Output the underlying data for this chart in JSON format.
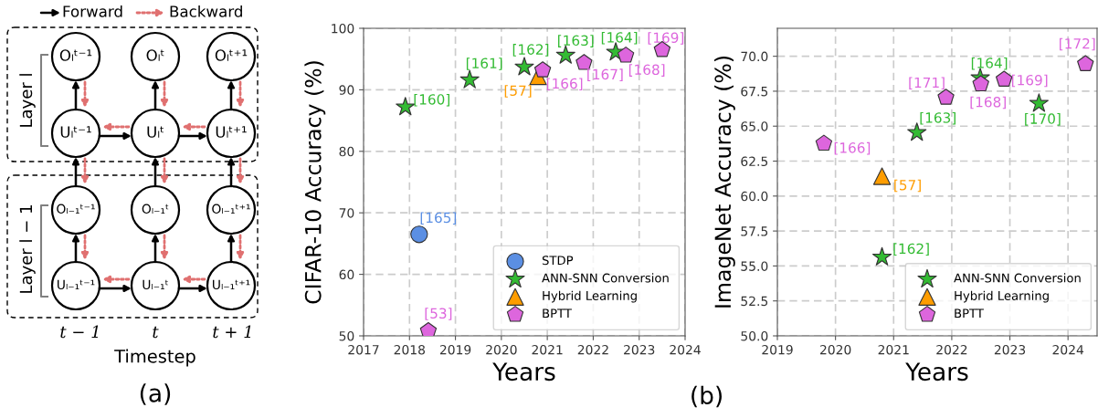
{
  "chart_data": [
    {
      "type": "other",
      "annotations": [
        "Forward",
        "Backward",
        "Layer l",
        "Layer l − 1",
        "Oₗᵗ⁻¹",
        "Oₗᵗ",
        "Oₗᵗ⁺¹",
        "Uₗᵗ⁻¹",
        "Uₗᵗ",
        "Uₗᵗ⁺¹",
        "Oₗ₋₁ᵗ⁻¹",
        "Oₗ₋₁ᵗ",
        "Oₗ₋₁ᵗ⁺¹",
        "Uₗ₋₁ᵗ⁻¹",
        "Uₗ₋₁ᵗ",
        "Uₗ₋₁ᵗ⁺¹",
        "t − 1",
        "t",
        "t + 1",
        "Timestep",
        "(a)"
      ]
    },
    {
      "type": "scatter",
      "xlabel": "Years",
      "ylabel": "CIFAR-10 Accuracy (%)",
      "xlim": [
        2017,
        2024
      ],
      "ylim": [
        50,
        100
      ],
      "xticks": [
        2017,
        2018,
        2019,
        2020,
        2021,
        2022,
        2023,
        2024
      ],
      "yticks": [
        50,
        60,
        70,
        80,
        90,
        100
      ],
      "grid": true,
      "legend": "bottom right",
      "annotations": [
        "(b)",
        {
          "text": "[165]",
          "x": 2018.21,
          "y": 66.5
        },
        {
          "text": "[160]",
          "x": 2017.91,
          "y": 87.2
        },
        {
          "text": "[161]",
          "x": 2019.31,
          "y": 91.6
        },
        {
          "text": "[162]",
          "x": 2020.5,
          "y": 93.7
        },
        {
          "text": "[163]",
          "x": 2021.4,
          "y": 95.6
        },
        {
          "text": "[164]",
          "x": 2022.49,
          "y": 96.1
        },
        {
          "text": "[57]",
          "x": 2020.8,
          "y": 92.2
        },
        {
          "text": "[53]",
          "x": 2018.41,
          "y": 50.8
        },
        {
          "text": "[166]",
          "x": 2020.9,
          "y": 93.2
        },
        {
          "text": "[167]",
          "x": 2021.8,
          "y": 94.4
        },
        {
          "text": "[168]",
          "x": 2022.71,
          "y": 95.6
        },
        {
          "text": "[169]",
          "x": 2023.5,
          "y": 96.5
        }
      ],
      "series": [
        {
          "name": "STDP",
          "color": "#5b8fe3",
          "marker": "circle",
          "x": [
            2018.21
          ],
          "values": [
            66.5
          ]
        },
        {
          "name": "ANN-SNN Conversion",
          "color": "#33bb33",
          "marker": "star",
          "x": [
            2017.91,
            2019.31,
            2020.5,
            2021.4,
            2022.49
          ],
          "values": [
            87.2,
            91.6,
            93.7,
            95.6,
            96.1
          ]
        },
        {
          "name": "Hybrid Learning",
          "color": "#ff9d00",
          "marker": "triangle",
          "x": [
            2020.8
          ],
          "values": [
            92.2
          ]
        },
        {
          "name": "BPTT",
          "color": "#dd66dd",
          "x": [
            2018.41,
            2020.9,
            2021.8,
            2022.71,
            2023.5
          ],
          "values": [
            50.8,
            93.2,
            94.4,
            95.6,
            96.5
          ]
        }
      ]
    },
    {
      "type": "scatter",
      "xlabel": "Years",
      "ylabel": "ImageNet Accuracy (%)",
      "xlim": [
        2019,
        2024.5
      ],
      "ylim": [
        50,
        72
      ],
      "xticks": [
        2019,
        2020,
        2021,
        2022,
        2023,
        2024
      ],
      "yticks": [
        {
          "value": 50,
          "label": "50.0"
        },
        {
          "value": 52.5,
          "label": "52.5"
        },
        {
          "value": 55,
          "label": "55.0"
        },
        {
          "value": 57.5,
          "label": "57.5"
        },
        {
          "value": 60,
          "label": "60.0"
        },
        {
          "value": 62.5,
          "label": "62.5"
        },
        {
          "value": 65,
          "label": "65.0"
        },
        {
          "value": 67.5,
          "label": "67.5"
        },
        {
          "value": 70,
          "label": "70.0"
        }
      ],
      "grid": true,
      "legend": "bottom right",
      "annotations": [
        {
          "text": "[162]",
          "x": 2020.8,
          "y": 55.63
        },
        {
          "text": "[163]",
          "x": 2021.4,
          "y": 64.54
        },
        {
          "text": "[164]",
          "x": 2022.49,
          "y": 68.45
        },
        {
          "text": "[170]",
          "x": 2023.5,
          "y": 66.62
        },
        {
          "text": "[57]",
          "x": 2020.8,
          "y": 61.42
        },
        {
          "text": "[166]",
          "x": 2019.8,
          "y": 63.76
        },
        {
          "text": "[171]",
          "x": 2021.9,
          "y": 67.05
        },
        {
          "text": "[168]",
          "x": 2022.5,
          "y": 68.01
        },
        {
          "text": "[169]",
          "x": 2022.9,
          "y": 68.34
        },
        {
          "text": "[172]",
          "x": 2024.3,
          "y": 69.45
        }
      ],
      "series": [
        {
          "name": "ANN-SNN Conversion",
          "color": "#33bb33",
          "marker": "star",
          "x": [
            2020.8,
            2021.4,
            2022.49,
            2023.5
          ],
          "values": [
            55.63,
            64.54,
            68.45,
            66.62
          ]
        },
        {
          "name": "Hybrid Learning",
          "color": "#ff9d00",
          "marker": "triangle",
          "x": [
            2020.8
          ],
          "values": [
            61.42
          ]
        },
        {
          "name": "BPTT",
          "color": "#dd66dd",
          "x": [
            2019.8,
            2021.9,
            2022.5,
            2022.9,
            2024.3
          ],
          "values": [
            63.76,
            67.05,
            68.01,
            68.34,
            69.45
          ]
        }
      ]
    }
  ]
}
